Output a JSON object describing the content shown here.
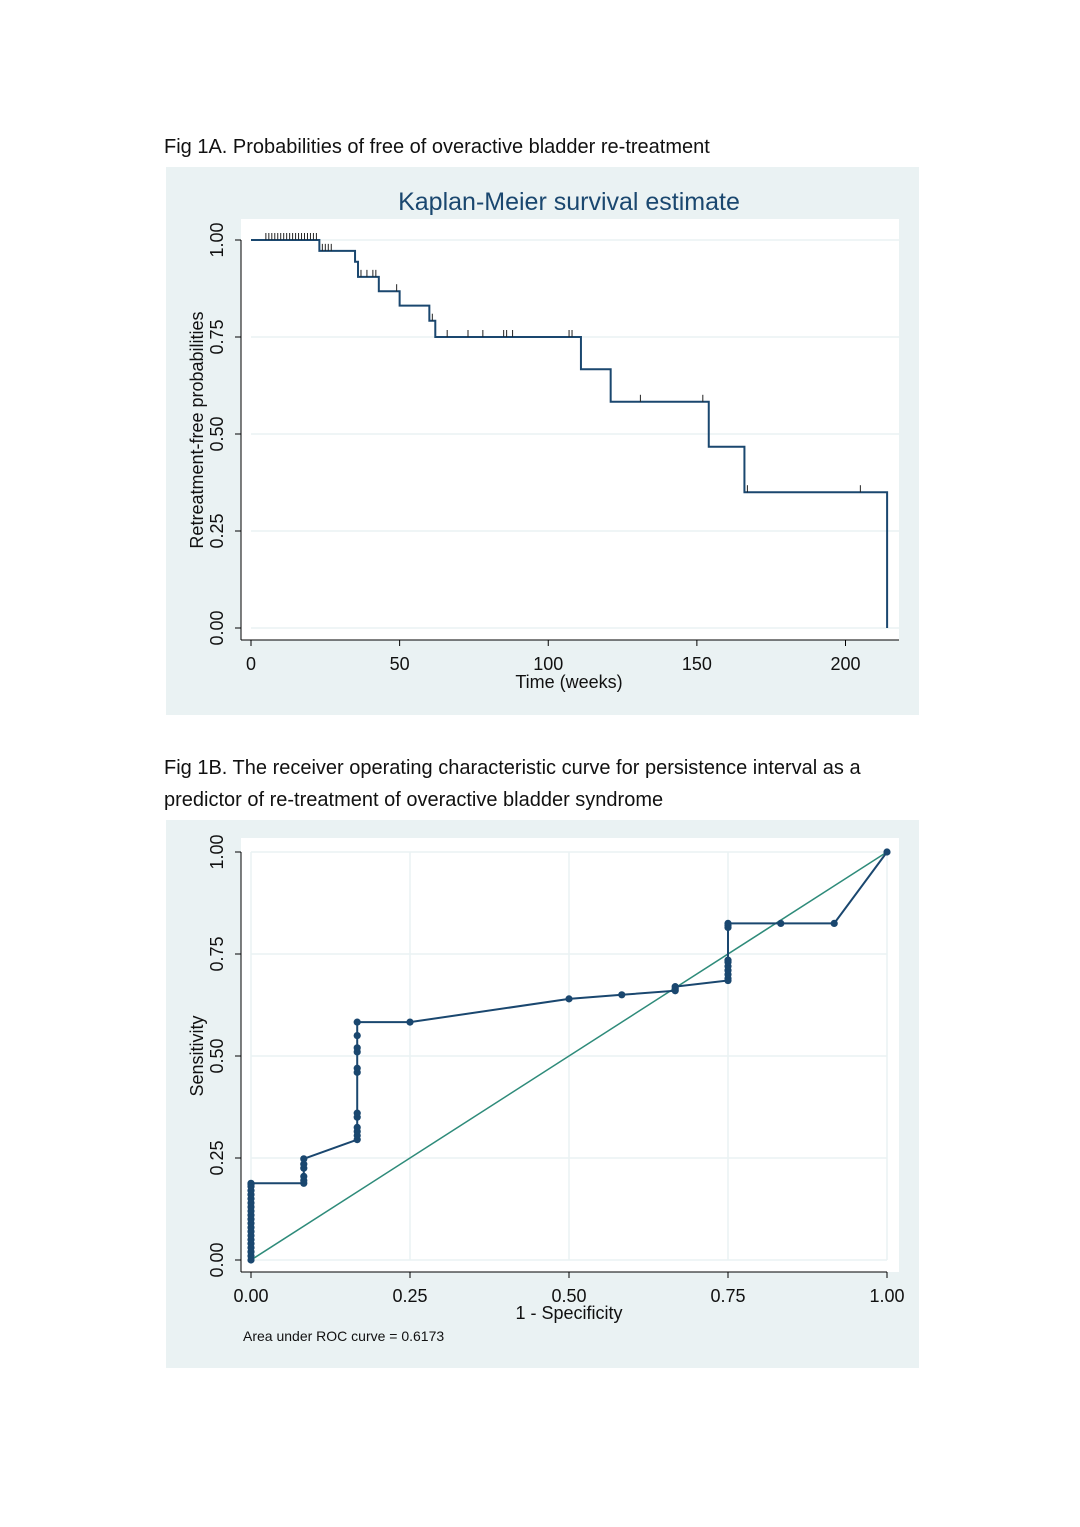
{
  "captions": {
    "fig1a": "Fig 1A. Probabilities of free of overactive bladder re-treatment",
    "fig1b_line1": "Fig 1B. The receiver operating characteristic curve for persistence interval as a",
    "fig1b_line2": "predictor of re-treatment of overactive bladder syndrome"
  },
  "colors": {
    "panel_bg": "#eaf2f3",
    "plot_bg": "#ffffff",
    "grid": "#eaf2f3",
    "series": "#1a476f",
    "reference_line": "#2e8b7a",
    "axis": "#000000"
  },
  "chart_data": [
    {
      "type": "line",
      "subtype": "step",
      "title": "Kaplan-Meier survival estimate",
      "xlabel": "Time (weeks)",
      "ylabel": "Retreatment-free probabilities",
      "xlim": [
        0,
        218
      ],
      "ylim": [
        0,
        1
      ],
      "x_ticks": [
        0,
        50,
        100,
        150,
        200
      ],
      "x_tick_labels": [
        "0",
        "50",
        "100",
        "150",
        "200"
      ],
      "y_ticks": [
        0,
        0.25,
        0.5,
        0.75,
        1
      ],
      "y_tick_labels": [
        "0.00",
        "0.25",
        "0.50",
        "0.75",
        "1.00"
      ],
      "grid": true,
      "series": [
        {
          "x": [
            0,
            23,
            35,
            36,
            43,
            50,
            60,
            62,
            111,
            121,
            154,
            166,
            214,
            214
          ],
          "y": [
            1.0,
            0.972,
            0.944,
            0.905,
            0.868,
            0.831,
            0.792,
            0.75,
            0.667,
            0.583,
            0.467,
            0.35,
            0.35,
            0.0
          ]
        }
      ],
      "censored": [
        {
          "x": [
            5,
            6,
            7,
            8,
            9,
            10,
            11,
            12,
            13,
            14,
            15,
            16,
            17,
            18,
            19,
            20,
            21,
            22
          ],
          "y": 1.0
        },
        {
          "x": [
            24,
            25,
            26,
            27
          ],
          "y": 0.972
        },
        {
          "x": [
            37,
            39,
            41,
            42
          ],
          "y": 0.905
        },
        {
          "x": [
            49
          ],
          "y": 0.868
        },
        {
          "x": [
            61
          ],
          "y": 0.792
        },
        {
          "x": [
            66,
            73,
            78,
            85,
            86,
            88,
            107,
            108
          ],
          "y": 0.75
        },
        {
          "x": [
            131,
            152
          ],
          "y": 0.583
        },
        {
          "x": [
            167,
            205
          ],
          "y": 0.35
        }
      ]
    },
    {
      "type": "line",
      "subtype": "roc",
      "title": "",
      "xlabel": "1 - Specificity",
      "ylabel": "Sensitivity",
      "xlim": [
        0,
        1
      ],
      "ylim": [
        0,
        1
      ],
      "x_ticks": [
        0,
        0.25,
        0.5,
        0.75,
        1
      ],
      "x_tick_labels": [
        "0.00",
        "0.25",
        "0.50",
        "0.75",
        "1.00"
      ],
      "y_ticks": [
        0,
        0.25,
        0.5,
        0.75,
        1
      ],
      "y_tick_labels": [
        "0.00",
        "0.25",
        "0.50",
        "0.75",
        "1.00"
      ],
      "grid": true,
      "note": "Area under ROC curve = 0.6173",
      "series": [
        {
          "x": [
            0,
            0,
            0,
            0,
            0,
            0,
            0,
            0,
            0,
            0,
            0,
            0,
            0,
            0,
            0,
            0,
            0,
            0,
            0,
            0,
            0,
            0.083,
            0.083,
            0.083,
            0.083,
            0.083,
            0.083,
            0.167,
            0.167,
            0.167,
            0.167,
            0.167,
            0.167,
            0.167,
            0.167,
            0.167,
            0.167,
            0.167,
            0.167,
            0.25,
            0.5,
            0.583,
            0.667,
            0.667,
            0.667,
            0.75,
            0.75,
            0.75,
            0.75,
            0.75,
            0.75,
            0.75,
            0.75,
            0.75,
            0.75,
            0.833,
            0.917,
            1.0
          ],
          "y": [
            0,
            0.01,
            0.02,
            0.03,
            0.04,
            0.05,
            0.06,
            0.07,
            0.08,
            0.09,
            0.1,
            0.11,
            0.12,
            0.13,
            0.14,
            0.15,
            0.16,
            0.17,
            0.18,
            0.185,
            0.188,
            0.188,
            0.195,
            0.205,
            0.225,
            0.235,
            0.248,
            0.295,
            0.305,
            0.315,
            0.325,
            0.35,
            0.36,
            0.46,
            0.47,
            0.51,
            0.52,
            0.55,
            0.583,
            0.583,
            0.64,
            0.65,
            0.66,
            0.665,
            0.67,
            0.685,
            0.69,
            0.7,
            0.71,
            0.72,
            0.73,
            0.735,
            0.815,
            0.82,
            0.825,
            0.825,
            0.825,
            1.0
          ]
        },
        {
          "name": "reference",
          "x": [
            0,
            1
          ],
          "y": [
            0,
            1
          ]
        }
      ]
    }
  ]
}
